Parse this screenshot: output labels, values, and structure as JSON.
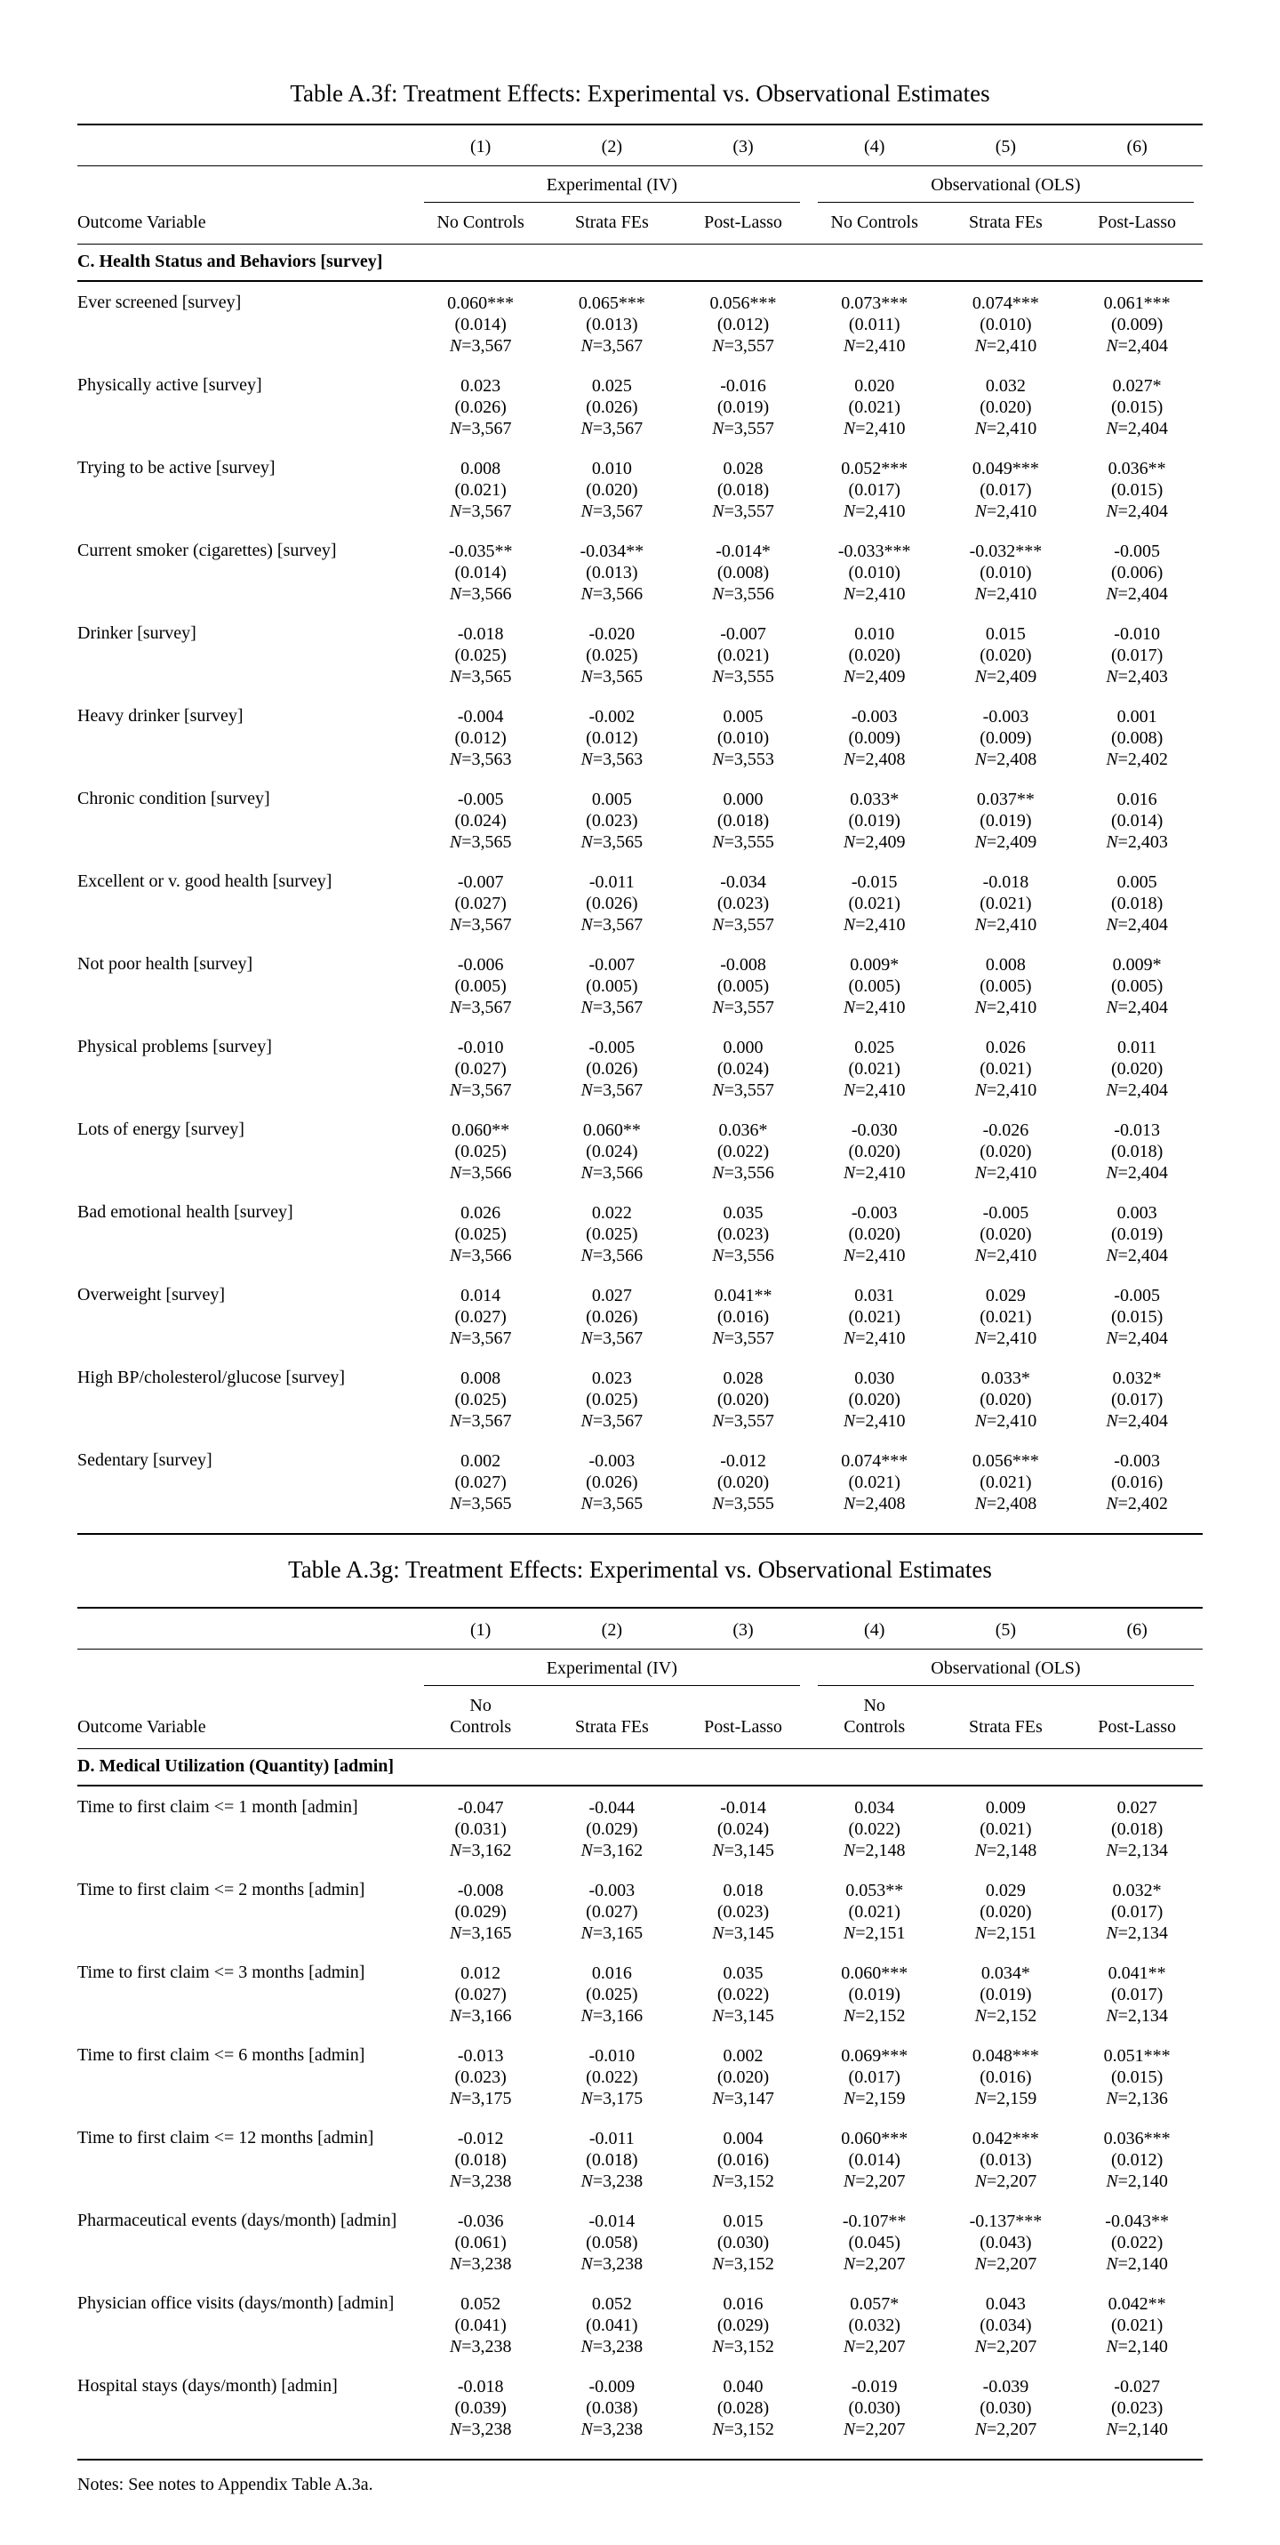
{
  "notes": "Notes: See notes to Appendix Table A.3a.",
  "tables": [
    {
      "title": "Table A.3f: Treatment Effects: Experimental vs. Observational Estimates",
      "column_numbers": [
        "(1)",
        "(2)",
        "(3)",
        "(4)",
        "(5)",
        "(6)"
      ],
      "group_headers": [
        "Experimental (IV)",
        "Observational (OLS)"
      ],
      "outcome_column_header": "Outcome Variable",
      "column_subheaders": [
        "No Controls",
        "Strata FEs",
        "Post-Lasso",
        "No Controls",
        "Strata FEs",
        "Post-Lasso"
      ],
      "section_header": "C. Health Status and Behaviors [survey]",
      "rows": [
        {
          "label": "Ever screened [survey]",
          "coef": [
            "0.060***",
            "0.065***",
            "0.056***",
            "0.073***",
            "0.074***",
            "0.061***"
          ],
          "se": [
            "(0.014)",
            "(0.013)",
            "(0.012)",
            "(0.011)",
            "(0.010)",
            "(0.009)"
          ],
          "n": [
            "N=3,567",
            "N=3,567",
            "N=3,557",
            "N=2,410",
            "N=2,410",
            "N=2,404"
          ]
        },
        {
          "label": "Physically active [survey]",
          "coef": [
            "0.023",
            "0.025",
            "-0.016",
            "0.020",
            "0.032",
            "0.027*"
          ],
          "se": [
            "(0.026)",
            "(0.026)",
            "(0.019)",
            "(0.021)",
            "(0.020)",
            "(0.015)"
          ],
          "n": [
            "N=3,567",
            "N=3,567",
            "N=3,557",
            "N=2,410",
            "N=2,410",
            "N=2,404"
          ]
        },
        {
          "label": "Trying to be active [survey]",
          "coef": [
            "0.008",
            "0.010",
            "0.028",
            "0.052***",
            "0.049***",
            "0.036**"
          ],
          "se": [
            "(0.021)",
            "(0.020)",
            "(0.018)",
            "(0.017)",
            "(0.017)",
            "(0.015)"
          ],
          "n": [
            "N=3,567",
            "N=3,567",
            "N=3,557",
            "N=2,410",
            "N=2,410",
            "N=2,404"
          ]
        },
        {
          "label": "Current smoker (cigarettes) [survey]",
          "coef": [
            "-0.035**",
            "-0.034**",
            "-0.014*",
            "-0.033***",
            "-0.032***",
            "-0.005"
          ],
          "se": [
            "(0.014)",
            "(0.013)",
            "(0.008)",
            "(0.010)",
            "(0.010)",
            "(0.006)"
          ],
          "n": [
            "N=3,566",
            "N=3,566",
            "N=3,556",
            "N=2,410",
            "N=2,410",
            "N=2,404"
          ]
        },
        {
          "label": "Drinker [survey]",
          "coef": [
            "-0.018",
            "-0.020",
            "-0.007",
            "0.010",
            "0.015",
            "-0.010"
          ],
          "se": [
            "(0.025)",
            "(0.025)",
            "(0.021)",
            "(0.020)",
            "(0.020)",
            "(0.017)"
          ],
          "n": [
            "N=3,565",
            "N=3,565",
            "N=3,555",
            "N=2,409",
            "N=2,409",
            "N=2,403"
          ]
        },
        {
          "label": "Heavy drinker [survey]",
          "coef": [
            "-0.004",
            "-0.002",
            "0.005",
            "-0.003",
            "-0.003",
            "0.001"
          ],
          "se": [
            "(0.012)",
            "(0.012)",
            "(0.010)",
            "(0.009)",
            "(0.009)",
            "(0.008)"
          ],
          "n": [
            "N=3,563",
            "N=3,563",
            "N=3,553",
            "N=2,408",
            "N=2,408",
            "N=2,402"
          ]
        },
        {
          "label": "Chronic condition [survey]",
          "coef": [
            "-0.005",
            "0.005",
            "0.000",
            "0.033*",
            "0.037**",
            "0.016"
          ],
          "se": [
            "(0.024)",
            "(0.023)",
            "(0.018)",
            "(0.019)",
            "(0.019)",
            "(0.014)"
          ],
          "n": [
            "N=3,565",
            "N=3,565",
            "N=3,555",
            "N=2,409",
            "N=2,409",
            "N=2,403"
          ]
        },
        {
          "label": "Excellent or v. good health [survey]",
          "coef": [
            "-0.007",
            "-0.011",
            "-0.034",
            "-0.015",
            "-0.018",
            "0.005"
          ],
          "se": [
            "(0.027)",
            "(0.026)",
            "(0.023)",
            "(0.021)",
            "(0.021)",
            "(0.018)"
          ],
          "n": [
            "N=3,567",
            "N=3,567",
            "N=3,557",
            "N=2,410",
            "N=2,410",
            "N=2,404"
          ]
        },
        {
          "label": "Not poor health [survey]",
          "coef": [
            "-0.006",
            "-0.007",
            "-0.008",
            "0.009*",
            "0.008",
            "0.009*"
          ],
          "se": [
            "(0.005)",
            "(0.005)",
            "(0.005)",
            "(0.005)",
            "(0.005)",
            "(0.005)"
          ],
          "n": [
            "N=3,567",
            "N=3,567",
            "N=3,557",
            "N=2,410",
            "N=2,410",
            "N=2,404"
          ]
        },
        {
          "label": "Physical problems [survey]",
          "coef": [
            "-0.010",
            "-0.005",
            "0.000",
            "0.025",
            "0.026",
            "0.011"
          ],
          "se": [
            "(0.027)",
            "(0.026)",
            "(0.024)",
            "(0.021)",
            "(0.021)",
            "(0.020)"
          ],
          "n": [
            "N=3,567",
            "N=3,567",
            "N=3,557",
            "N=2,410",
            "N=2,410",
            "N=2,404"
          ]
        },
        {
          "label": "Lots of energy [survey]",
          "coef": [
            "0.060**",
            "0.060**",
            "0.036*",
            "-0.030",
            "-0.026",
            "-0.013"
          ],
          "se": [
            "(0.025)",
            "(0.024)",
            "(0.022)",
            "(0.020)",
            "(0.020)",
            "(0.018)"
          ],
          "n": [
            "N=3,566",
            "N=3,566",
            "N=3,556",
            "N=2,410",
            "N=2,410",
            "N=2,404"
          ]
        },
        {
          "label": "Bad emotional health [survey]",
          "coef": [
            "0.026",
            "0.022",
            "0.035",
            "-0.003",
            "-0.005",
            "0.003"
          ],
          "se": [
            "(0.025)",
            "(0.025)",
            "(0.023)",
            "(0.020)",
            "(0.020)",
            "(0.019)"
          ],
          "n": [
            "N=3,566",
            "N=3,566",
            "N=3,556",
            "N=2,410",
            "N=2,410",
            "N=2,404"
          ]
        },
        {
          "label": "Overweight [survey]",
          "coef": [
            "0.014",
            "0.027",
            "0.041**",
            "0.031",
            "0.029",
            "-0.005"
          ],
          "se": [
            "(0.027)",
            "(0.026)",
            "(0.016)",
            "(0.021)",
            "(0.021)",
            "(0.015)"
          ],
          "n": [
            "N=3,567",
            "N=3,567",
            "N=3,557",
            "N=2,410",
            "N=2,410",
            "N=2,404"
          ]
        },
        {
          "label": "High BP/cholesterol/glucose [survey]",
          "coef": [
            "0.008",
            "0.023",
            "0.028",
            "0.030",
            "0.033*",
            "0.032*"
          ],
          "se": [
            "(0.025)",
            "(0.025)",
            "(0.020)",
            "(0.020)",
            "(0.020)",
            "(0.017)"
          ],
          "n": [
            "N=3,567",
            "N=3,567",
            "N=3,557",
            "N=2,410",
            "N=2,410",
            "N=2,404"
          ]
        },
        {
          "label": "Sedentary [survey]",
          "coef": [
            "0.002",
            "-0.003",
            "-0.012",
            "0.074***",
            "0.056***",
            "-0.003"
          ],
          "se": [
            "(0.027)",
            "(0.026)",
            "(0.020)",
            "(0.021)",
            "(0.021)",
            "(0.016)"
          ],
          "n": [
            "N=3,565",
            "N=3,565",
            "N=3,555",
            "N=2,408",
            "N=2,408",
            "N=2,402"
          ]
        }
      ]
    },
    {
      "title": "Table A.3g: Treatment Effects: Experimental vs. Observational Estimates",
      "column_numbers": [
        "(1)",
        "(2)",
        "(3)",
        "(4)",
        "(5)",
        "(6)"
      ],
      "group_headers": [
        "Experimental (IV)",
        "Observational (OLS)"
      ],
      "outcome_column_header": "Outcome Variable",
      "column_subheaders": [
        "No\nControls",
        "Strata FEs",
        "Post-Lasso",
        "No\nControls",
        "Strata FEs",
        "Post-Lasso"
      ],
      "section_header": "D. Medical Utilization (Quantity) [admin]",
      "rows": [
        {
          "label": "Time to first claim <= 1 month [admin]",
          "coef": [
            "-0.047",
            "-0.044",
            "-0.014",
            "0.034",
            "0.009",
            "0.027"
          ],
          "se": [
            "(0.031)",
            "(0.029)",
            "(0.024)",
            "(0.022)",
            "(0.021)",
            "(0.018)"
          ],
          "n": [
            "N=3,162",
            "N=3,162",
            "N=3,145",
            "N=2,148",
            "N=2,148",
            "N=2,134"
          ]
        },
        {
          "label": "Time to first claim <= 2 months [admin]",
          "coef": [
            "-0.008",
            "-0.003",
            "0.018",
            "0.053**",
            "0.029",
            "0.032*"
          ],
          "se": [
            "(0.029)",
            "(0.027)",
            "(0.023)",
            "(0.021)",
            "(0.020)",
            "(0.017)"
          ],
          "n": [
            "N=3,165",
            "N=3,165",
            "N=3,145",
            "N=2,151",
            "N=2,151",
            "N=2,134"
          ]
        },
        {
          "label": "Time to first claim <= 3 months [admin]",
          "coef": [
            "0.012",
            "0.016",
            "0.035",
            "0.060***",
            "0.034*",
            "0.041**"
          ],
          "se": [
            "(0.027)",
            "(0.025)",
            "(0.022)",
            "(0.019)",
            "(0.019)",
            "(0.017)"
          ],
          "n": [
            "N=3,166",
            "N=3,166",
            "N=3,145",
            "N=2,152",
            "N=2,152",
            "N=2,134"
          ]
        },
        {
          "label": "Time to first claim <= 6 months [admin]",
          "coef": [
            "-0.013",
            "-0.010",
            "0.002",
            "0.069***",
            "0.048***",
            "0.051***"
          ],
          "se": [
            "(0.023)",
            "(0.022)",
            "(0.020)",
            "(0.017)",
            "(0.016)",
            "(0.015)"
          ],
          "n": [
            "N=3,175",
            "N=3,175",
            "N=3,147",
            "N=2,159",
            "N=2,159",
            "N=2,136"
          ]
        },
        {
          "label": "Time to first claim <= 12 months [admin]",
          "coef": [
            "-0.012",
            "-0.011",
            "0.004",
            "0.060***",
            "0.042***",
            "0.036***"
          ],
          "se": [
            "(0.018)",
            "(0.018)",
            "(0.016)",
            "(0.014)",
            "(0.013)",
            "(0.012)"
          ],
          "n": [
            "N=3,238",
            "N=3,238",
            "N=3,152",
            "N=2,207",
            "N=2,207",
            "N=2,140"
          ]
        },
        {
          "label": "Pharmaceutical events (days/month) [admin]",
          "coef": [
            "-0.036",
            "-0.014",
            "0.015",
            "-0.107**",
            "-0.137***",
            "-0.043**"
          ],
          "se": [
            "(0.061)",
            "(0.058)",
            "(0.030)",
            "(0.045)",
            "(0.043)",
            "(0.022)"
          ],
          "n": [
            "N=3,238",
            "N=3,238",
            "N=3,152",
            "N=2,207",
            "N=2,207",
            "N=2,140"
          ]
        },
        {
          "label": "Physician office visits (days/month) [admin]",
          "coef": [
            "0.052",
            "0.052",
            "0.016",
            "0.057*",
            "0.043",
            "0.042**"
          ],
          "se": [
            "(0.041)",
            "(0.041)",
            "(0.029)",
            "(0.032)",
            "(0.034)",
            "(0.021)"
          ],
          "n": [
            "N=3,238",
            "N=3,238",
            "N=3,152",
            "N=2,207",
            "N=2,207",
            "N=2,140"
          ]
        },
        {
          "label": "Hospital stays (days/month) [admin]",
          "coef": [
            "-0.018",
            "-0.009",
            "0.040",
            "-0.019",
            "-0.039",
            "-0.027"
          ],
          "se": [
            "(0.039)",
            "(0.038)",
            "(0.028)",
            "(0.030)",
            "(0.030)",
            "(0.023)"
          ],
          "n": [
            "N=3,238",
            "N=3,238",
            "N=3,152",
            "N=2,207",
            "N=2,207",
            "N=2,140"
          ]
        }
      ]
    }
  ]
}
